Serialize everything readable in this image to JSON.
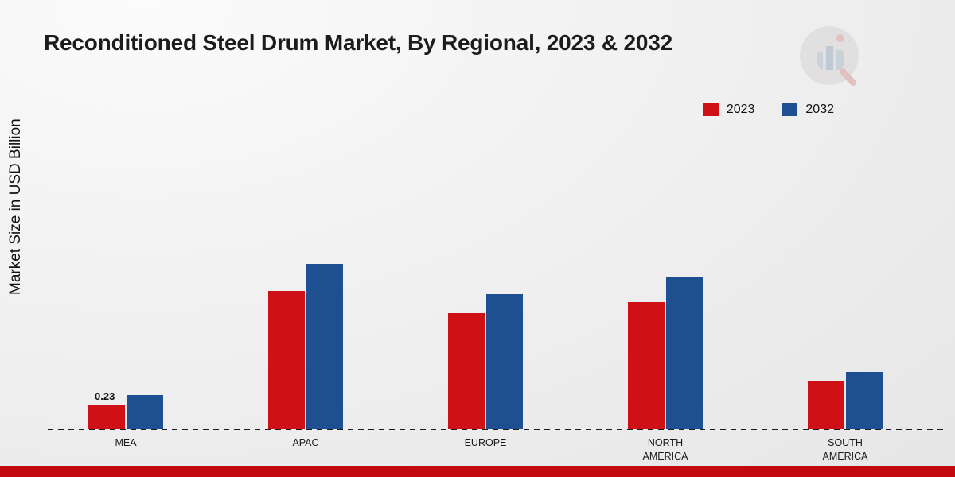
{
  "chart_data": {
    "type": "bar",
    "title": "Reconditioned Steel Drum Market, By Regional, 2023 & 2032",
    "ylabel": "Market Size in USD Billion",
    "xlabel": "",
    "categories": [
      "MEA",
      "APAC",
      "EUROPE",
      "NORTH AMERICA",
      "SOUTH AMERICA"
    ],
    "series": [
      {
        "name": "2023",
        "color": "#cf1016",
        "values": [
          0.23,
          1.34,
          1.12,
          1.23,
          0.47
        ]
      },
      {
        "name": "2032",
        "color": "#1d4f91",
        "values": [
          0.33,
          1.6,
          1.31,
          1.47,
          0.55
        ]
      }
    ],
    "data_labels": [
      {
        "series_index": 0,
        "category_index": 0,
        "text": "0.23"
      }
    ],
    "ylim": [
      0,
      2
    ],
    "grid": false,
    "legend_position": "top-right",
    "baseline_style": "dashed"
  },
  "legend": {
    "items": [
      {
        "label": "2023"
      },
      {
        "label": "2032"
      }
    ]
  },
  "decor": {
    "bottom_strip_color": "#c20a10",
    "background_top": "#fbfbfb",
    "background_bottom": "#e6e6e6"
  },
  "logo": {
    "name": "market-research-brand-logo"
  }
}
